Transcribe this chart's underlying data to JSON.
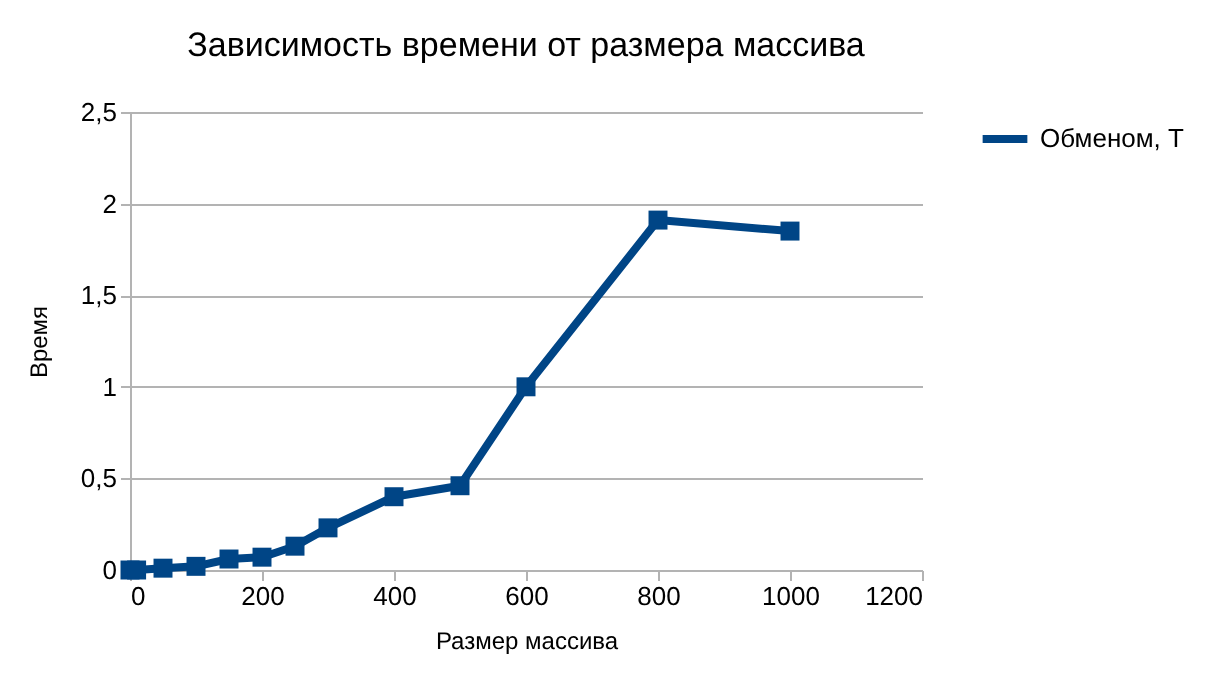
{
  "chart_data": {
    "type": "line",
    "title": "Зависимость времени от размера массива",
    "xlabel": "Размер массива",
    "ylabel": "Время",
    "x": [
      0,
      10,
      50,
      100,
      150,
      200,
      250,
      300,
      400,
      500,
      600,
      800,
      1000
    ],
    "series": [
      {
        "name": "Обменом, T",
        "color": "#004586",
        "values": [
          0,
          0,
          0.01,
          0.02,
          0.06,
          0.07,
          0.13,
          0.23,
          0.4,
          0.46,
          1,
          1.91,
          1.85
        ]
      }
    ],
    "xlim": [
      0,
      1200
    ],
    "xticks": [
      0,
      200,
      400,
      600,
      800,
      1000,
      1200
    ],
    "ylim": [
      0,
      2.5
    ],
    "yticks": [
      0,
      {
        "value": 0.5,
        "label": "0,5"
      },
      1,
      {
        "value": 1.5,
        "label": "1,5"
      },
      2,
      {
        "value": 2.5,
        "label": "2,5"
      }
    ],
    "grid": "y",
    "legend": "right",
    "marker": "square",
    "line_style": "solid"
  }
}
